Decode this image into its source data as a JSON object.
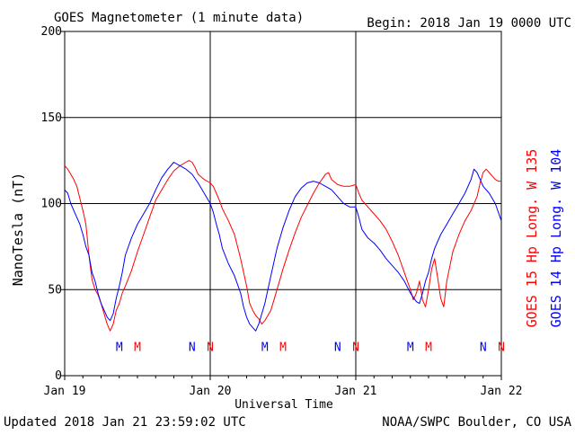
{
  "header": {
    "title": "GOES Magnetometer (1 minute data)",
    "begin": "Begin:  2018 Jan 19 0000 UTC"
  },
  "footer": {
    "updated": "Updated 2018 Jan 21 23:59:02 UTC",
    "credit": "NOAA/SWPC Boulder, CO USA"
  },
  "chart_data": {
    "type": "line",
    "title": "GOES Magnetometer (1 minute data)",
    "xlabel": "Universal Time",
    "ylabel": "NanoTesla (nT)",
    "xlim": [
      0,
      72
    ],
    "ylim": [
      0,
      200
    ],
    "x_unit": "hours since 2018 Jan 19 0000 UTC",
    "x_ticks": [
      {
        "x": 0,
        "label": "Jan 19"
      },
      {
        "x": 24,
        "label": "Jan 20"
      },
      {
        "x": 48,
        "label": "Jan 21"
      },
      {
        "x": 72,
        "label": "Jan 22"
      }
    ],
    "y_ticks": [
      {
        "y": 0,
        "label": "0"
      },
      {
        "y": 50,
        "label": "50"
      },
      {
        "y": 100,
        "label": "100"
      },
      {
        "y": 150,
        "label": "150"
      },
      {
        "y": 200,
        "label": "200"
      }
    ],
    "grid": true,
    "series": [
      {
        "name": "GOES 15 Hp  Long. W 135",
        "color": "#ff0000",
        "points": [
          [
            0,
            122
          ],
          [
            0.5,
            120
          ],
          [
            1,
            117
          ],
          [
            1.5,
            114
          ],
          [
            2,
            110
          ],
          [
            2.5,
            103
          ],
          [
            3,
            96
          ],
          [
            3.5,
            88
          ],
          [
            4,
            70
          ],
          [
            4.5,
            56
          ],
          [
            5,
            50
          ],
          [
            5.5,
            47
          ],
          [
            6,
            42
          ],
          [
            6.5,
            36
          ],
          [
            7,
            30
          ],
          [
            7.5,
            26
          ],
          [
            8,
            30
          ],
          [
            8.5,
            38
          ],
          [
            9,
            42
          ],
          [
            9.5,
            48
          ],
          [
            10,
            52
          ],
          [
            11,
            61
          ],
          [
            12,
            72
          ],
          [
            13,
            82
          ],
          [
            14,
            92
          ],
          [
            15,
            102
          ],
          [
            16,
            108
          ],
          [
            17,
            114
          ],
          [
            18,
            119
          ],
          [
            19,
            122
          ],
          [
            20,
            124
          ],
          [
            20.5,
            125
          ],
          [
            21,
            124
          ],
          [
            21.5,
            121
          ],
          [
            22,
            117
          ],
          [
            23,
            114
          ],
          [
            24,
            112
          ],
          [
            24.5,
            110
          ],
          [
            25,
            106
          ],
          [
            25.5,
            102
          ],
          [
            26,
            97
          ],
          [
            27,
            90
          ],
          [
            28,
            82
          ],
          [
            29,
            68
          ],
          [
            30,
            52
          ],
          [
            30.5,
            42
          ],
          [
            31,
            38
          ],
          [
            31.5,
            35
          ],
          [
            32,
            33
          ],
          [
            32.5,
            30
          ],
          [
            33,
            32
          ],
          [
            34,
            38
          ],
          [
            35,
            50
          ],
          [
            36,
            62
          ],
          [
            37,
            73
          ],
          [
            38,
            83
          ],
          [
            39,
            92
          ],
          [
            40,
            99
          ],
          [
            41,
            106
          ],
          [
            42,
            112
          ],
          [
            43,
            117
          ],
          [
            43.5,
            118
          ],
          [
            44,
            114
          ],
          [
            45,
            111
          ],
          [
            46,
            110
          ],
          [
            47,
            110
          ],
          [
            48,
            111
          ],
          [
            48.5,
            106
          ],
          [
            49,
            102
          ],
          [
            50,
            98
          ],
          [
            51,
            94
          ],
          [
            52,
            90
          ],
          [
            53,
            85
          ],
          [
            54,
            78
          ],
          [
            55,
            70
          ],
          [
            56,
            60
          ],
          [
            57,
            50
          ],
          [
            57.5,
            44
          ],
          [
            58,
            48
          ],
          [
            58.5,
            55
          ],
          [
            59,
            44
          ],
          [
            59.5,
            40
          ],
          [
            60,
            50
          ],
          [
            60.5,
            62
          ],
          [
            61,
            68
          ],
          [
            61.5,
            57
          ],
          [
            62,
            45
          ],
          [
            62.5,
            40
          ],
          [
            63,
            55
          ],
          [
            64,
            72
          ],
          [
            65,
            82
          ],
          [
            66,
            90
          ],
          [
            67,
            96
          ],
          [
            68,
            104
          ],
          [
            68.5,
            112
          ],
          [
            69,
            118
          ],
          [
            69.5,
            120
          ],
          [
            70,
            118
          ],
          [
            70.5,
            116
          ],
          [
            71,
            114
          ],
          [
            71.5,
            113
          ],
          [
            72,
            113
          ]
        ]
      },
      {
        "name": "GOES 14 Hp  Long. W 104",
        "color": "#0000ff",
        "points": [
          [
            0,
            108
          ],
          [
            0.5,
            106
          ],
          [
            1,
            100
          ],
          [
            1.5,
            96
          ],
          [
            2,
            92
          ],
          [
            2.5,
            88
          ],
          [
            3,
            82
          ],
          [
            3.5,
            75
          ],
          [
            4,
            70
          ],
          [
            4.5,
            60
          ],
          [
            5,
            55
          ],
          [
            5.5,
            48
          ],
          [
            6,
            42
          ],
          [
            6.5,
            38
          ],
          [
            7,
            34
          ],
          [
            7.5,
            32
          ],
          [
            8,
            36
          ],
          [
            8.5,
            45
          ],
          [
            9,
            52
          ],
          [
            9.5,
            60
          ],
          [
            10,
            70
          ],
          [
            11,
            80
          ],
          [
            12,
            88
          ],
          [
            13,
            94
          ],
          [
            14,
            100
          ],
          [
            15,
            108
          ],
          [
            16,
            115
          ],
          [
            17,
            120
          ],
          [
            18,
            124
          ],
          [
            19,
            122
          ],
          [
            20,
            120
          ],
          [
            21,
            117
          ],
          [
            22,
            112
          ],
          [
            23,
            106
          ],
          [
            24,
            100
          ],
          [
            24.5,
            95
          ],
          [
            25,
            88
          ],
          [
            25.5,
            82
          ],
          [
            26,
            74
          ],
          [
            27,
            65
          ],
          [
            28,
            58
          ],
          [
            29,
            48
          ],
          [
            29.5,
            40
          ],
          [
            30,
            34
          ],
          [
            30.5,
            30
          ],
          [
            31,
            28
          ],
          [
            31.5,
            26
          ],
          [
            32,
            30
          ],
          [
            33,
            42
          ],
          [
            34,
            58
          ],
          [
            35,
            74
          ],
          [
            36,
            86
          ],
          [
            37,
            96
          ],
          [
            38,
            104
          ],
          [
            39,
            109
          ],
          [
            40,
            112
          ],
          [
            41,
            113
          ],
          [
            42,
            112
          ],
          [
            43,
            110
          ],
          [
            44,
            108
          ],
          [
            45,
            104
          ],
          [
            46,
            100
          ],
          [
            47,
            98
          ],
          [
            48,
            98
          ],
          [
            48.5,
            92
          ],
          [
            49,
            85
          ],
          [
            50,
            80
          ],
          [
            51,
            77
          ],
          [
            52,
            73
          ],
          [
            53,
            68
          ],
          [
            54,
            64
          ],
          [
            55,
            60
          ],
          [
            56,
            55
          ],
          [
            57,
            48
          ],
          [
            58,
            43
          ],
          [
            58.5,
            42
          ],
          [
            59,
            48
          ],
          [
            59.5,
            55
          ],
          [
            60,
            60
          ],
          [
            60.5,
            68
          ],
          [
            61,
            74
          ],
          [
            62,
            82
          ],
          [
            63,
            88
          ],
          [
            64,
            94
          ],
          [
            65,
            100
          ],
          [
            66,
            106
          ],
          [
            67,
            114
          ],
          [
            67.5,
            120
          ],
          [
            68,
            118
          ],
          [
            68.5,
            114
          ],
          [
            69,
            110
          ],
          [
            70,
            106
          ],
          [
            71,
            100
          ],
          [
            72,
            90
          ]
        ]
      }
    ],
    "annotations": [
      {
        "label": "M",
        "x": 9.0,
        "color": "#0000ff"
      },
      {
        "label": "M",
        "x": 12.0,
        "color": "#ff0000"
      },
      {
        "label": "N",
        "x": 21.0,
        "color": "#0000ff"
      },
      {
        "label": "N",
        "x": 24.0,
        "color": "#ff0000"
      },
      {
        "label": "M",
        "x": 33.0,
        "color": "#0000ff"
      },
      {
        "label": "M",
        "x": 36.0,
        "color": "#ff0000"
      },
      {
        "label": "N",
        "x": 45.0,
        "color": "#0000ff"
      },
      {
        "label": "N",
        "x": 48.0,
        "color": "#ff0000"
      },
      {
        "label": "M",
        "x": 57.0,
        "color": "#0000ff"
      },
      {
        "label": "M",
        "x": 60.0,
        "color": "#ff0000"
      },
      {
        "label": "N",
        "x": 69.0,
        "color": "#0000ff"
      },
      {
        "label": "N",
        "x": 72.0,
        "color": "#ff0000"
      }
    ],
    "annotation_y": 17,
    "legend_position": "right (vertical)"
  }
}
